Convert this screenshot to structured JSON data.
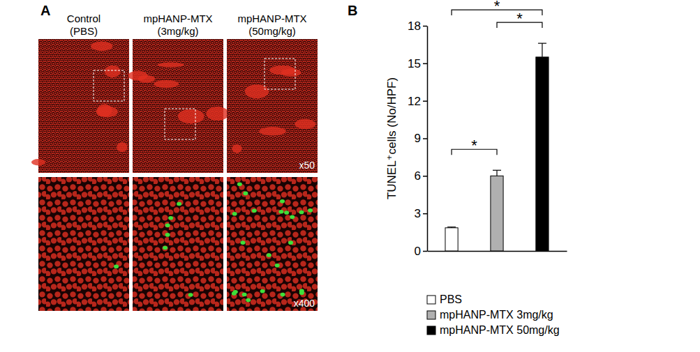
{
  "panel_labels": [
    "A",
    "B"
  ],
  "panel_a": {
    "columns": [
      {
        "title": "Control",
        "subtitle": "(PBS)"
      },
      {
        "title": "mpHANP-MTX",
        "subtitle": "(3mg/kg)"
      },
      {
        "title": "mpHANP-MTX",
        "subtitle": "(50mg/kg)"
      }
    ],
    "magnifications": [
      "x50",
      "x400"
    ]
  },
  "chart_data": {
    "type": "bar",
    "categories": [
      "PBS",
      "mpHANP-MTX 3mg/kg",
      "mpHANP-MTX 50mg/kg"
    ],
    "values": [
      1.85,
      6.0,
      15.5
    ],
    "errors": [
      0.06,
      0.45,
      1.1
    ],
    "colors": [
      "#ffffff",
      "#b0b0b0",
      "#000000"
    ],
    "ylabel": "TUNEL⁺cells (No/HPF)",
    "ylim": [
      0,
      18
    ],
    "yticks": [
      0,
      3,
      6,
      9,
      12,
      15,
      18
    ],
    "tick_labels": "y",
    "legend": "bottom",
    "annotations": [
      {
        "text": "*",
        "from": 0,
        "to": 1
      },
      {
        "text": "*",
        "from": 1,
        "to": 2
      },
      {
        "text": "*",
        "from": 0,
        "to": 2
      }
    ]
  }
}
